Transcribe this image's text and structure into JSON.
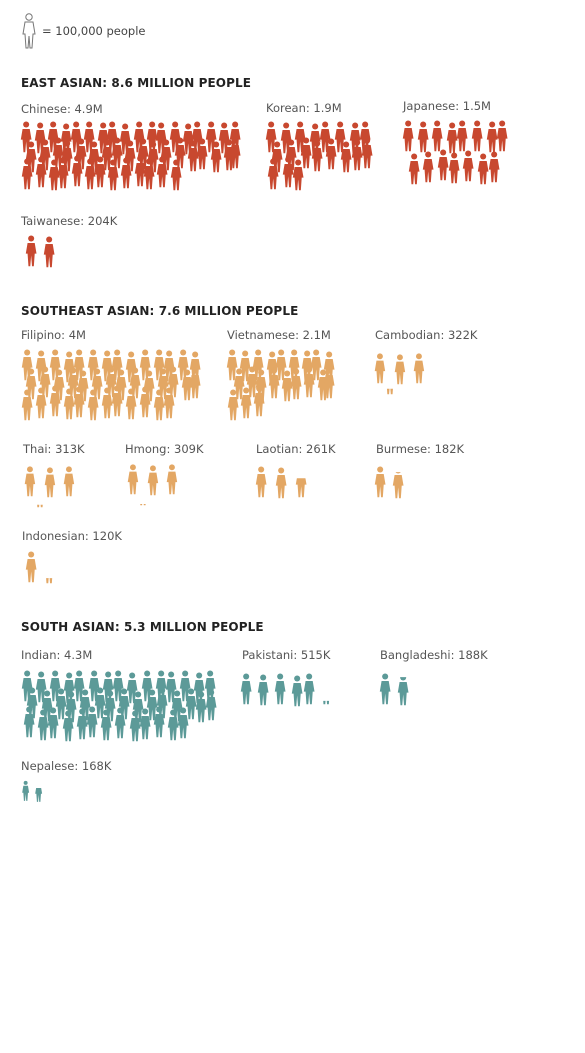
{
  "legend": {
    "label": "= 100,000 people",
    "icon": "person-outline-icon"
  },
  "colors": {
    "east_asian": "#c8482f",
    "southeast_asian": "#e3a764",
    "south_asian": "#5c9a98",
    "legend_stroke": "#777777"
  },
  "chart_data": {
    "type": "pictograph",
    "unit": "100,000 people per icon",
    "sections": [
      {
        "key": "east_asian",
        "heading": "EAST ASIAN: 8.6 MILLION PEOPLE",
        "groups": [
          {
            "label": "Chinese: 4.9M",
            "value": 4900000
          },
          {
            "label": "Korean: 1.9M",
            "value": 1900000
          },
          {
            "label": "Japanese: 1.5M",
            "value": 1500000
          },
          {
            "label": "Taiwanese: 204K",
            "value": 204000
          }
        ]
      },
      {
        "key": "southeast_asian",
        "heading": "SOUTHEAST ASIAN: 7.6 MILLION PEOPLE",
        "groups": [
          {
            "label": "Filipino: 4M",
            "value": 4000000
          },
          {
            "label": "Vietnamese: 2.1M",
            "value": 2100000
          },
          {
            "label": "Cambodian: 322K",
            "value": 322000
          },
          {
            "label": "Thai: 313K",
            "value": 313000
          },
          {
            "label": "Hmong: 309K",
            "value": 309000
          },
          {
            "label": "Laotian: 261K",
            "value": 261000
          },
          {
            "label": "Burmese: 182K",
            "value": 182000
          },
          {
            "label": "Indonesian: 120K",
            "value": 120000
          }
        ]
      },
      {
        "key": "south_asian",
        "heading": "SOUTH ASIAN: 5.3 MILLION PEOPLE",
        "groups": [
          {
            "label": "Indian: 4.3M",
            "value": 4300000
          },
          {
            "label": "Pakistani: 515K",
            "value": 515000
          },
          {
            "label": "Bangladeshi: 188K",
            "value": 188000
          },
          {
            "label": "Nepalese: 168K",
            "value": 168000
          }
        ]
      }
    ]
  }
}
